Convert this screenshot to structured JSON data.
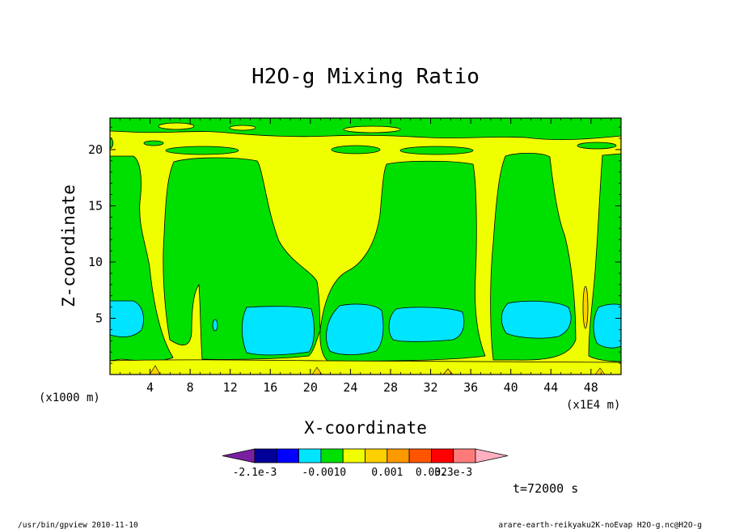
{
  "chart_data": {
    "type": "heatmap",
    "title": "H2O-g Mixing Ratio",
    "xlabel": "X-coordinate",
    "ylabel": "Z-coordinate",
    "x_scale_note": "(x1E4 m)",
    "y_scale_note": "(x1000 m)",
    "xlim": [
      0,
      51
    ],
    "ylim": [
      0,
      22.8
    ],
    "x_ticks": [
      4,
      8,
      12,
      16,
      20,
      24,
      28,
      32,
      36,
      40,
      44,
      48
    ],
    "y_ticks": [
      5,
      10,
      15,
      20
    ],
    "levels": [
      {
        "label": "-2.1e-3",
        "color": "#7a1fa2"
      },
      {
        "label": "",
        "color": "#000099"
      },
      {
        "label": "",
        "color": "#0000ff"
      },
      {
        "label": "-0.001",
        "color": "#00e5ff"
      },
      {
        "label": "0",
        "color": "#00e000"
      },
      {
        "label": "",
        "color": "#f0ff00"
      },
      {
        "label": "0.001",
        "color": "#ffd000"
      },
      {
        "label": "",
        "color": "#ff9900"
      },
      {
        "label": "0.002",
        "color": "#ff5500"
      },
      {
        "label": "3.3e-3",
        "color": "#ff0000"
      },
      {
        "label": "",
        "color": "#ff7b7b"
      },
      {
        "label": "",
        "color": "#ffb0c0"
      }
    ],
    "colorbar_labels": [
      "-2.1e-3",
      "-0.001",
      "0",
      "0.001",
      "0.002",
      "3.3e-3"
    ],
    "regions": [
      {
        "name": "cyan-region-left",
        "fill": "cyan",
        "x": [
          0,
          3.3
        ],
        "z": [
          3.5,
          6.5
        ]
      },
      {
        "name": "cyan-region-mid",
        "fill": "cyan",
        "x": [
          14.5,
          20.5
        ],
        "z": [
          1.5,
          6
        ]
      },
      {
        "name": "cyan-region-center",
        "fill": "cyan",
        "x": [
          22.5,
          27
        ],
        "z": [
          1.5,
          6
        ]
      },
      {
        "name": "cyan-region-right",
        "fill": "cyan",
        "x": [
          28,
          35.5
        ],
        "z": [
          3,
          6
        ]
      },
      {
        "name": "cyan-region-far",
        "fill": "cyan",
        "x": [
          39.5,
          46
        ],
        "z": [
          3,
          6.5
        ]
      },
      {
        "name": "cyan-region-edge",
        "fill": "cyan",
        "x": [
          48.5,
          51
        ],
        "z": [
          2.5,
          6
        ]
      },
      {
        "name": "green-region-a",
        "fill": "green",
        "x": [
          0,
          2.5
        ],
        "z": [
          1,
          19.5
        ]
      },
      {
        "name": "green-region-b",
        "fill": "green",
        "x": [
          5.8,
          21
        ],
        "z": [
          1,
          19.3
        ]
      },
      {
        "name": "green-region-c",
        "fill": "green",
        "x": [
          21,
          36.5
        ],
        "z": [
          1,
          19
        ]
      },
      {
        "name": "green-region-d",
        "fill": "green",
        "x": [
          37.5,
          46.5
        ],
        "z": [
          1,
          19.5
        ]
      },
      {
        "name": "green-region-e",
        "fill": "green",
        "x": [
          47.5,
          51
        ],
        "z": [
          1,
          19.5
        ]
      }
    ]
  },
  "time_label": "t=72000 s",
  "footer_left": "/usr/bin/gpview  2010-11-10",
  "footer_right": "arare-earth-reikyaku2K-noEvap_H2O-g.nc@H2O-g"
}
